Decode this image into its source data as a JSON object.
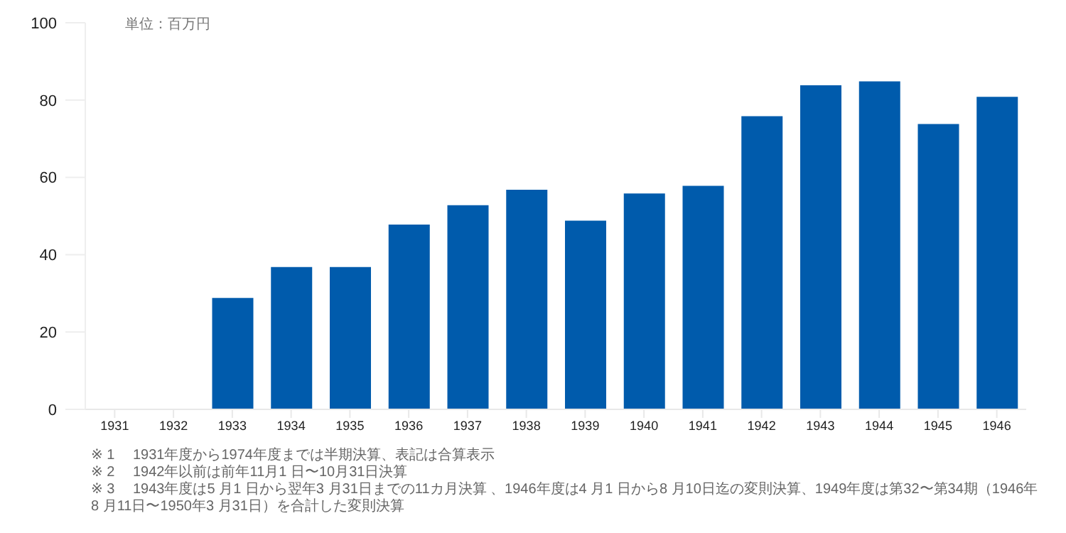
{
  "chart_data": {
    "type": "bar",
    "ylabel": "単位：百万円",
    "categories": [
      "1931",
      "1932",
      "1933",
      "1934",
      "1935",
      "1936",
      "1937",
      "1938",
      "1939",
      "1940",
      "1941",
      "1942",
      "1943",
      "1944",
      "1945",
      "1946"
    ],
    "values": [
      null,
      null,
      29,
      37,
      37,
      48,
      53,
      57,
      49,
      56,
      58,
      76,
      84,
      85,
      74,
      81
    ],
    "color": "#005bac",
    "ylim": [
      0,
      100
    ],
    "yticks": [
      0,
      20,
      40,
      60,
      80,
      100
    ],
    "grid": false,
    "legend": false,
    "annotations": [
      "※ 1　 1931年度から1974年度までは半期決算、表記は合算表示",
      "※ 2　 1942年以前は前年11月1 日〜10月31日決算",
      "※ 3　 1943年度は5 月1 日から翌年3 月31日までの11カ月決算 、1946年度は4 月1 日から8 月10日迄の変則決算、1949年度は第32〜第34期（1946年8 月11日〜1950年3 月31日）を合計した変則決算"
    ]
  }
}
